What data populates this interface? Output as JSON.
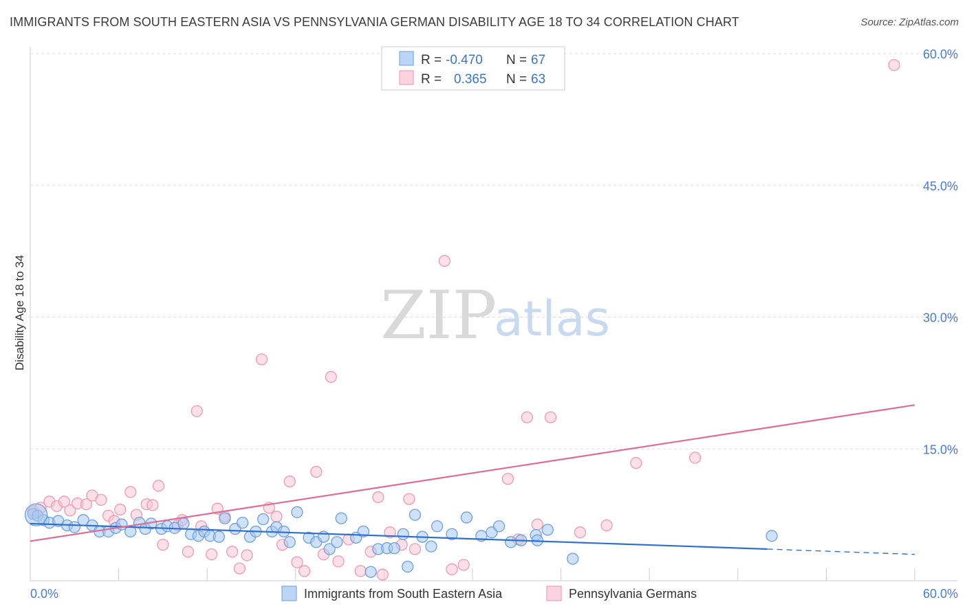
{
  "header": {
    "title": "IMMIGRANTS FROM SOUTH EASTERN ASIA VS PENNSYLVANIA GERMAN DISABILITY AGE 18 TO 34 CORRELATION CHART",
    "source": "Source: ZipAtlas.com"
  },
  "watermark": {
    "zip": "ZIP",
    "atlas": "atlas"
  },
  "legend": {
    "r_label": "R =",
    "n_label": "N =",
    "rows": [
      {
        "r_value": "-0.470",
        "n_value": "67"
      },
      {
        "r_value": "0.365",
        "n_value": "63"
      }
    ]
  },
  "chart_data": {
    "type": "scatter",
    "title": "IMMIGRANTS FROM SOUTH EASTERN ASIA VS PENNSYLVANIA GERMAN DISABILITY AGE 18 TO 34 CORRELATION CHART",
    "xlabel": "",
    "ylabel": "Disability Age 18 to 34",
    "xlim": [
      0,
      60
    ],
    "ylim": [
      0,
      60
    ],
    "x_tick_labels": [
      "0.0%",
      "60.0%"
    ],
    "y_ticks": [
      {
        "value": 15,
        "label": "15.0%"
      },
      {
        "value": 30,
        "label": "30.0%"
      },
      {
        "value": 45,
        "label": "45.0%"
      },
      {
        "value": 60,
        "label": "60.0%"
      }
    ],
    "colors": {
      "blue_fill": "#a8c8f0",
      "blue_stroke": "#6d9fdc",
      "blue_line": "#2f6fcf",
      "pink_fill": "#f8c6d6",
      "pink_stroke": "#ec9ab5",
      "pink_line": "#e06b95"
    },
    "series": [
      {
        "name": "Immigrants from South Eastern Asia",
        "r": -0.47,
        "n": 67,
        "trend": {
          "x0": 0,
          "y0": 6.5,
          "x1": 50,
          "y1": 3.6,
          "dash_to_x": 60,
          "dash_to_y": 3.0
        },
        "points": [
          [
            0.2,
            7.6
          ],
          [
            0.5,
            7.4
          ],
          [
            0.9,
            6.9
          ],
          [
            1.3,
            6.6
          ],
          [
            1.9,
            6.8
          ],
          [
            2.5,
            6.3
          ],
          [
            3.0,
            6.1
          ],
          [
            3.6,
            6.9
          ],
          [
            4.2,
            6.3
          ],
          [
            4.7,
            5.6
          ],
          [
            5.3,
            5.6
          ],
          [
            5.8,
            6.0
          ],
          [
            6.2,
            6.4
          ],
          [
            6.8,
            5.6
          ],
          [
            7.4,
            6.6
          ],
          [
            7.8,
            5.9
          ],
          [
            8.2,
            6.5
          ],
          [
            8.9,
            5.9
          ],
          [
            9.3,
            6.2
          ],
          [
            9.8,
            6.0
          ],
          [
            10.4,
            6.5
          ],
          [
            10.9,
            5.3
          ],
          [
            11.4,
            5.1
          ],
          [
            11.8,
            5.6
          ],
          [
            12.2,
            5.1
          ],
          [
            12.8,
            5.0
          ],
          [
            13.2,
            7.1
          ],
          [
            13.9,
            5.9
          ],
          [
            14.4,
            6.6
          ],
          [
            14.9,
            5.0
          ],
          [
            15.3,
            5.6
          ],
          [
            15.8,
            7.0
          ],
          [
            16.4,
            5.6
          ],
          [
            16.7,
            6.1
          ],
          [
            17.2,
            5.6
          ],
          [
            17.6,
            4.4
          ],
          [
            18.1,
            7.8
          ],
          [
            18.9,
            4.9
          ],
          [
            19.4,
            4.4
          ],
          [
            19.9,
            5.0
          ],
          [
            20.3,
            3.6
          ],
          [
            20.8,
            4.4
          ],
          [
            21.1,
            7.1
          ],
          [
            22.1,
            4.9
          ],
          [
            22.6,
            5.6
          ],
          [
            23.1,
            1.0
          ],
          [
            23.6,
            3.6
          ],
          [
            24.2,
            3.7
          ],
          [
            24.7,
            3.7
          ],
          [
            25.3,
            5.3
          ],
          [
            25.6,
            1.6
          ],
          [
            26.1,
            7.5
          ],
          [
            26.6,
            5.0
          ],
          [
            27.2,
            3.9
          ],
          [
            27.6,
            6.2
          ],
          [
            28.6,
            5.3
          ],
          [
            29.6,
            7.2
          ],
          [
            30.6,
            5.1
          ],
          [
            31.3,
            5.5
          ],
          [
            31.8,
            6.2
          ],
          [
            32.6,
            4.4
          ],
          [
            33.3,
            4.6
          ],
          [
            34.3,
            5.2
          ],
          [
            34.4,
            4.6
          ],
          [
            35.1,
            5.8
          ],
          [
            36.8,
            2.5
          ],
          [
            50.3,
            5.1
          ]
        ]
      },
      {
        "name": "Pennsylvania Germans",
        "r": 0.365,
        "n": 63,
        "trend": {
          "x0": 0,
          "y0": 4.5,
          "x1": 60,
          "y1": 20.0
        },
        "points": [
          [
            0.2,
            7.9
          ],
          [
            0.7,
            8.3
          ],
          [
            1.3,
            9.0
          ],
          [
            1.8,
            8.5
          ],
          [
            2.3,
            9.0
          ],
          [
            2.7,
            8.0
          ],
          [
            3.2,
            8.8
          ],
          [
            3.8,
            8.7
          ],
          [
            4.2,
            9.7
          ],
          [
            4.8,
            9.2
          ],
          [
            5.3,
            7.4
          ],
          [
            5.7,
            6.8
          ],
          [
            6.1,
            8.1
          ],
          [
            6.8,
            10.1
          ],
          [
            7.2,
            7.5
          ],
          [
            7.9,
            8.7
          ],
          [
            8.3,
            8.6
          ],
          [
            8.7,
            10.8
          ],
          [
            9.0,
            4.1
          ],
          [
            10.0,
            6.3
          ],
          [
            10.3,
            6.9
          ],
          [
            10.7,
            3.3
          ],
          [
            11.3,
            19.3
          ],
          [
            11.6,
            6.2
          ],
          [
            12.3,
            3.0
          ],
          [
            12.7,
            8.2
          ],
          [
            13.2,
            7.3
          ],
          [
            13.7,
            3.3
          ],
          [
            14.2,
            1.4
          ],
          [
            14.7,
            2.9
          ],
          [
            15.7,
            25.2
          ],
          [
            16.2,
            8.3
          ],
          [
            16.7,
            7.3
          ],
          [
            17.1,
            4.1
          ],
          [
            17.6,
            11.3
          ],
          [
            18.1,
            2.1
          ],
          [
            18.6,
            1.1
          ],
          [
            19.4,
            12.4
          ],
          [
            19.9,
            3.0
          ],
          [
            20.4,
            23.2
          ],
          [
            20.9,
            2.2
          ],
          [
            21.6,
            4.7
          ],
          [
            22.4,
            1.1
          ],
          [
            23.1,
            3.3
          ],
          [
            23.6,
            9.5
          ],
          [
            23.9,
            0.7
          ],
          [
            24.4,
            5.5
          ],
          [
            25.2,
            4.1
          ],
          [
            25.7,
            9.3
          ],
          [
            26.1,
            3.6
          ],
          [
            28.1,
            36.4
          ],
          [
            28.6,
            1.3
          ],
          [
            29.4,
            1.8
          ],
          [
            32.4,
            11.6
          ],
          [
            33.1,
            4.7
          ],
          [
            33.7,
            18.6
          ],
          [
            34.4,
            6.4
          ],
          [
            35.3,
            18.6
          ],
          [
            37.3,
            5.5
          ],
          [
            39.1,
            6.3
          ],
          [
            41.1,
            13.4
          ],
          [
            45.1,
            14.0
          ],
          [
            58.6,
            58.7
          ]
        ]
      }
    ]
  }
}
